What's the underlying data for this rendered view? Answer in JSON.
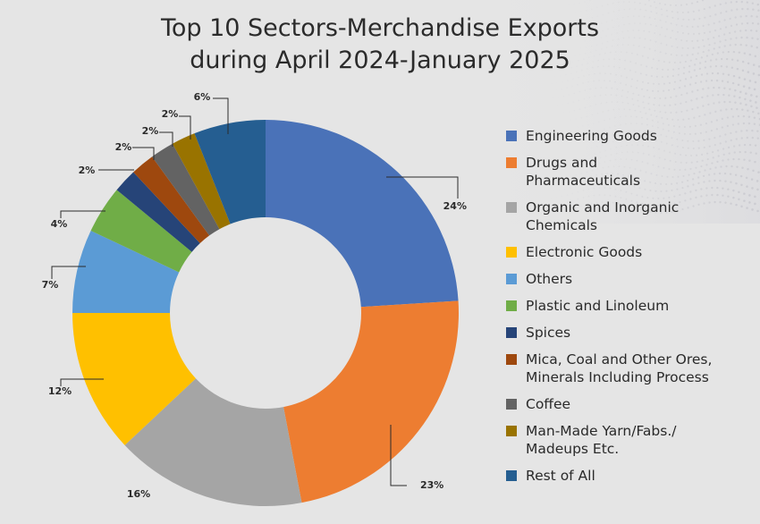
{
  "title_line1": "Top 10 Sectors-Merchandise Exports",
  "title_line2": "during April 2024-January 2025",
  "chart_data": {
    "type": "pie",
    "style": "donut",
    "title": "Top 10 Sectors-Merchandise Exports during April 2024-January 2025",
    "categories": [
      "Engineering Goods",
      "Drugs and\nPharmaceuticals",
      "Organic and Inorganic\nChemicals",
      "Electronic Goods",
      "Others",
      "Plastic and Linoleum",
      "Spices",
      "Mica, Coal and Other Ores,\nMinerals Including Process",
      "Coffee",
      "Man-Made Yarn/Fabs./\nMadeups Etc.",
      "Rest of All"
    ],
    "values": [
      24,
      23,
      16,
      12,
      7,
      4,
      2,
      2,
      2,
      2,
      6
    ],
    "labels": [
      "24%",
      "23%",
      "16%",
      "12%",
      "7%",
      "4%",
      "2%",
      "2%",
      "2%",
      "2%",
      "6%"
    ],
    "colors": [
      "#4a72b8",
      "#ed7d31",
      "#a5a5a5",
      "#ffc000",
      "#5b9bd5",
      "#70ad47",
      "#264478",
      "#9e480e",
      "#636363",
      "#997300",
      "#255e91"
    ],
    "legend_position": "right"
  }
}
